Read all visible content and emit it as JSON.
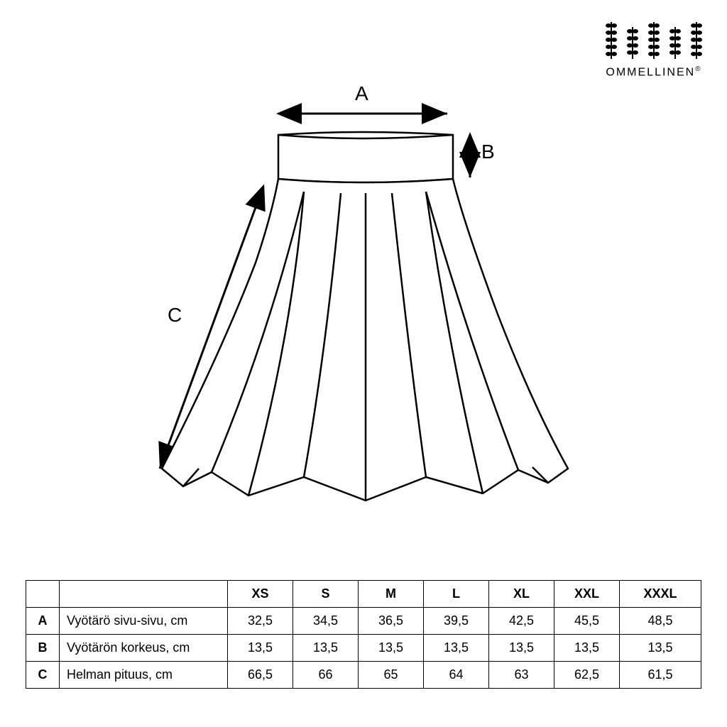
{
  "brand": {
    "name": "OMMELLINEN",
    "registered": "®"
  },
  "dimension_labels": {
    "A": "A",
    "B": "B",
    "C": "C"
  },
  "diagram": {
    "stroke": "#000000",
    "stroke_width": 2.5,
    "fill": "#ffffff",
    "arrow_stroke_width": 3
  },
  "table": {
    "sizes": [
      "XS",
      "S",
      "M",
      "L",
      "XL",
      "XXL",
      "XXXL"
    ],
    "rows": [
      {
        "key": "A",
        "label": "Vyötärö sivu-sivu, cm",
        "values": [
          "32,5",
          "34,5",
          "36,5",
          "39,5",
          "42,5",
          "45,5",
          "48,5"
        ]
      },
      {
        "key": "B",
        "label": "Vyötärön korkeus, cm",
        "values": [
          "13,5",
          "13,5",
          "13,5",
          "13,5",
          "13,5",
          "13,5",
          "13,5"
        ]
      },
      {
        "key": "C",
        "label": "Helman pituus, cm",
        "values": [
          "66,5",
          "66",
          "65",
          "64",
          "63",
          "62,5",
          "61,5"
        ]
      }
    ],
    "border_color": "#000000",
    "font_size": 18
  }
}
